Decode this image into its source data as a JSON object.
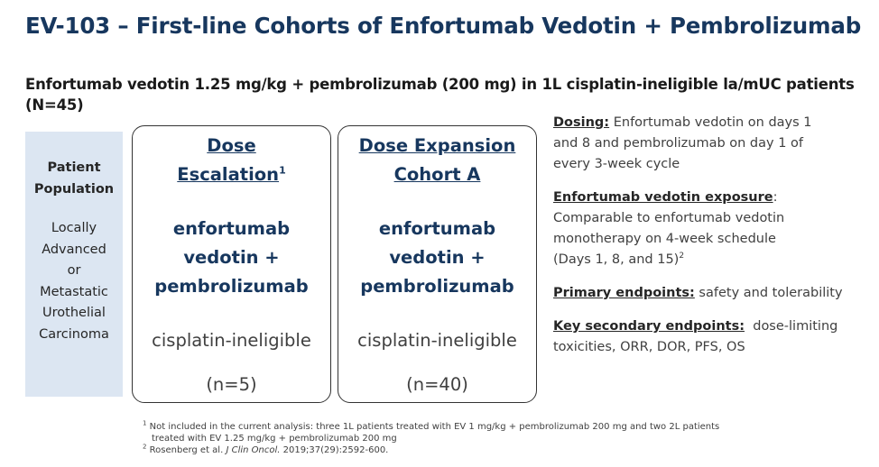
{
  "title": "EV-103 – First-line Cohorts of Enfortumab Vedotin + Pembrolizumab",
  "subtitle": "Enfortumab vedotin 1.25 mg/kg + pembrolizumab (200 mg) in 1L cisplatin-ineligible la/mUC patients (N=45)",
  "population": {
    "heading": [
      "Patient",
      "Population"
    ],
    "text": [
      "Locally",
      "Advanced",
      "or",
      "Metastatic",
      "Urothelial",
      "Carcinoma"
    ]
  },
  "cohorts": [
    {
      "title_lines": [
        "Dose",
        "Escalation"
      ],
      "title_sup": "1",
      "drug_lines": [
        "enfortumab",
        "vedotin +",
        "pembrolizumab"
      ],
      "eligibility": "cisplatin-ineligible",
      "n": "(n=5)"
    },
    {
      "title_lines": [
        "Dose Expansion",
        "Cohort A"
      ],
      "title_sup": "",
      "drug_lines": [
        "enfortumab",
        "vedotin +",
        "pembrolizumab"
      ],
      "eligibility": "cisplatin-ineligible",
      "n": "(n=40)"
    }
  ],
  "details": {
    "dosing_label": "Dosing:",
    "dosing_lines": [
      " Enfortumab vedotin on days 1",
      "and 8 and pembrolizumab on day 1 of",
      "every 3-week cycle"
    ],
    "exposure_label": "Enfortumab vedotin exposure",
    "exposure_colon": ":",
    "exposure_lines": [
      "Comparable to enfortumab vedotin",
      "monotherapy on 4-week schedule"
    ],
    "exposure_last": "(Days 1, 8, and 15)",
    "exposure_sup": "2",
    "primary_label": "Primary endpoints:",
    "primary_text": " safety and tolerability",
    "secondary_label": "Key secondary endpoints:",
    "secondary_line1": "  dose-limiting",
    "secondary_line2": "toxicities, ORR, DOR, PFS, OS"
  },
  "footnotes": {
    "fn1_sup": "1",
    "fn1_line1": " Not included in the current analysis: three 1L patients treated with EV 1 mg/kg + pembrolizumab 200 mg and two 2L patients",
    "fn1_line2": "treated with EV 1.25 mg/kg + pembrolizumab 200 mg",
    "fn2_sup": "2",
    "fn2_pre": " Rosenberg et al. ",
    "fn2_journal": "J Clin Oncol.",
    "fn2_post": " 2019;37(29):2592-600."
  }
}
